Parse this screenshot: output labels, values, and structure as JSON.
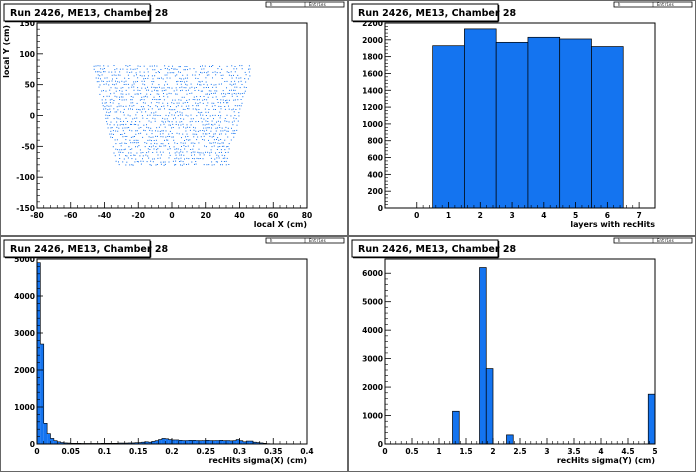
{
  "colors": {
    "fill": "#1474f0",
    "frame": "#000000",
    "background": "#ffffff"
  },
  "chart_data": [
    {
      "type": "scatter",
      "title": "Run 2426, ME13, Chamber 28",
      "xlabel": "local X (cm)",
      "ylabel": "local Y (cm)",
      "xlim": [
        -80,
        80
      ],
      "ylim": [
        -150,
        150
      ],
      "xticks": [
        -80,
        -60,
        -40,
        -20,
        0,
        20,
        40,
        60,
        80
      ],
      "yticks": [
        -150,
        -100,
        -50,
        0,
        50,
        100,
        150
      ],
      "ytick_labels": [
        "-150",
        "-100",
        "-50",
        "0",
        "50",
        "100",
        "150"
      ],
      "stat_box": [
        "h",
        "Entries"
      ],
      "region": {
        "y_top": 80,
        "y_bottom": -80,
        "x_half_top": 47,
        "x_half_bottom": 33
      }
    },
    {
      "type": "bar",
      "title": "Run 2426, ME13, Chamber 28",
      "xlabel": "layers with recHits",
      "ylabel": "",
      "xlim": [
        -1,
        7.5
      ],
      "ylim": [
        0,
        2200
      ],
      "xticks": [
        0,
        1,
        2,
        3,
        4,
        5,
        6,
        7
      ],
      "yticks": [
        0,
        200,
        400,
        600,
        800,
        1000,
        1200,
        1400,
        1600,
        1800,
        2000,
        2200
      ],
      "stat_box": [
        "h",
        "Entries"
      ],
      "bins": [
        {
          "x0": 0.5,
          "x1": 1.5,
          "value": 1930
        },
        {
          "x0": 1.5,
          "x1": 2.5,
          "value": 2130
        },
        {
          "x0": 2.5,
          "x1": 3.5,
          "value": 1970
        },
        {
          "x0": 3.5,
          "x1": 4.5,
          "value": 2030
        },
        {
          "x0": 4.5,
          "x1": 5.5,
          "value": 2010
        },
        {
          "x0": 5.5,
          "x1": 6.5,
          "value": 1920
        }
      ]
    },
    {
      "type": "bar",
      "title": "Run 2426, ME13, Chamber 28",
      "xlabel": "recHits sigma(X) (cm)",
      "ylabel": "",
      "xlim": [
        0,
        0.4
      ],
      "ylim": [
        0,
        5000
      ],
      "xticks": [
        0,
        0.05,
        0.1,
        0.15,
        0.2,
        0.25,
        0.3,
        0.35,
        0.4
      ],
      "yticks": [
        0,
        1000,
        2000,
        3000,
        4000,
        5000
      ],
      "stat_box": [
        "h",
        "Entries"
      ],
      "bin_width": 0.005,
      "x0": 0,
      "values": [
        4900,
        2700,
        560,
        280,
        150,
        90,
        60,
        40,
        30,
        25,
        20,
        20,
        20,
        15,
        15,
        15,
        15,
        15,
        15,
        20,
        20,
        20,
        20,
        20,
        25,
        25,
        25,
        30,
        30,
        35,
        40,
        50,
        60,
        50,
        70,
        90,
        120,
        150,
        140,
        120,
        110,
        110,
        100,
        95,
        95,
        100,
        100,
        95,
        90,
        95,
        100,
        95,
        90,
        95,
        100,
        90,
        95,
        85,
        90,
        120,
        90,
        60,
        80,
        80,
        50,
        40,
        30,
        20,
        10,
        5,
        0,
        0,
        0,
        0,
        0,
        0,
        0,
        0,
        0,
        0
      ]
    },
    {
      "type": "bar",
      "title": "Run 2426, ME13, Chamber 28",
      "xlabel": "recHits sigma(Y) (cm)",
      "ylabel": "",
      "xlim": [
        0,
        5
      ],
      "ylim": [
        0,
        6500
      ],
      "xticks": [
        0,
        0.5,
        1,
        1.5,
        2,
        2.5,
        3,
        3.5,
        4,
        4.5,
        5
      ],
      "yticks": [
        0,
        1000,
        2000,
        3000,
        4000,
        5000,
        6000
      ],
      "stat_box": [
        "h",
        "Entries"
      ],
      "bins": [
        {
          "x0": 1.25,
          "x1": 1.375,
          "value": 1150
        },
        {
          "x0": 1.75,
          "x1": 1.875,
          "value": 6200
        },
        {
          "x0": 1.875,
          "x1": 2.0,
          "value": 2650
        },
        {
          "x0": 2.25,
          "x1": 2.375,
          "value": 320
        },
        {
          "x0": 4.875,
          "x1": 5.0,
          "value": 1750
        }
      ]
    }
  ]
}
